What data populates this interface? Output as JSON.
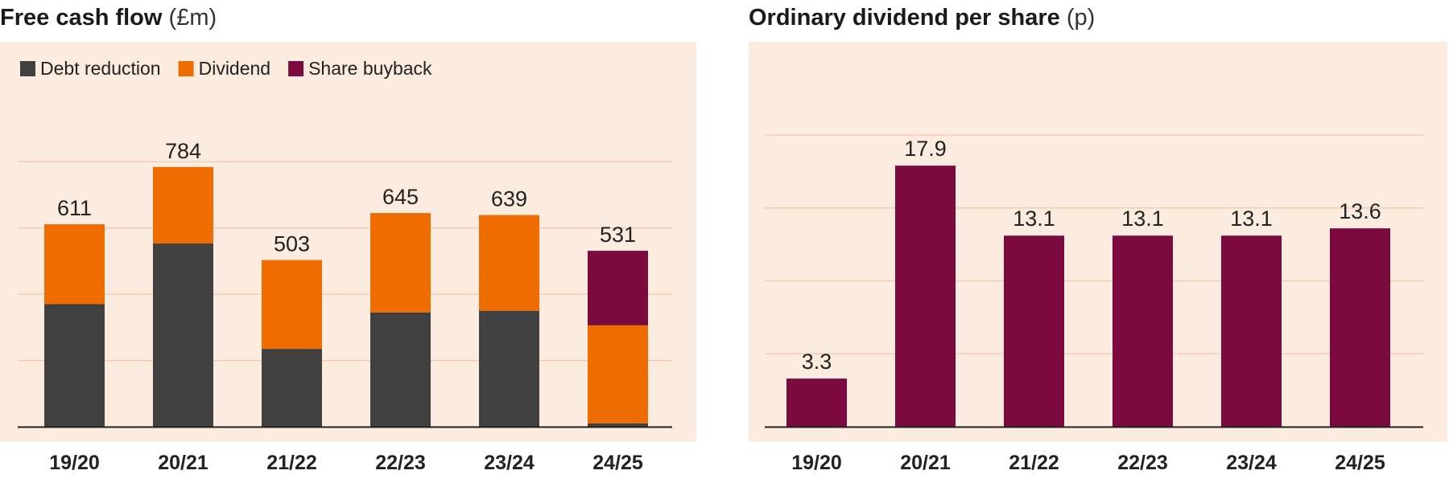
{
  "chart_data": [
    {
      "type": "bar",
      "stacked": true,
      "title": "Free cash flow",
      "unit": "(£m)",
      "categories": [
        "19/20",
        "20/21",
        "21/22",
        "22/23",
        "23/24",
        "24/25"
      ],
      "totals": [
        611,
        784,
        503,
        645,
        639,
        531
      ],
      "series": [
        {
          "name": "Debt reduction",
          "color": "#404040",
          "values": [
            370,
            553,
            235,
            345,
            350,
            10
          ]
        },
        {
          "name": "Dividend",
          "color": "#ef6c00",
          "values": [
            241,
            231,
            268,
            300,
            289,
            296
          ]
        },
        {
          "name": "Share buyback",
          "color": "#7b0b3f",
          "values": [
            0,
            0,
            0,
            0,
            0,
            225
          ]
        }
      ],
      "ylim": [
        0,
        900
      ],
      "grid": true,
      "legend": "top-left"
    },
    {
      "type": "bar",
      "title": "Ordinary dividend per share",
      "unit": "(p)",
      "categories": [
        "19/20",
        "20/21",
        "21/22",
        "22/23",
        "23/24",
        "24/25"
      ],
      "values": [
        3.3,
        17.9,
        13.1,
        13.1,
        13.1,
        13.6
      ],
      "color": "#7b0b3f",
      "ylim": [
        0,
        20
      ],
      "grid": true
    }
  ]
}
